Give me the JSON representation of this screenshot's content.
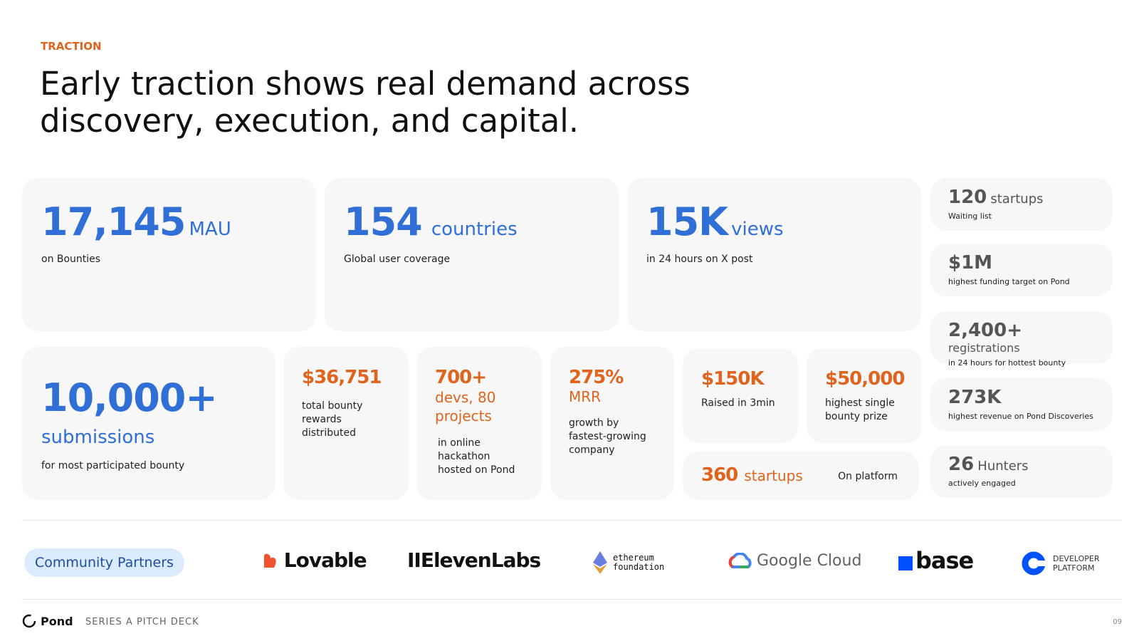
{
  "header": {
    "eyebrow": "TRACTION",
    "title_lines": [
      "Early traction shows real demand across",
      "discovery, execution, and capital."
    ]
  },
  "cards": [
    {
      "value": "17,145",
      "unit": "MAU",
      "caption": "on Bounties"
    },
    {
      "value": "154",
      "unit": "countries",
      "caption": "Global user coverage"
    },
    {
      "value": "15K",
      "unit": "views",
      "caption": "in 24 hours on X post"
    },
    {
      "value": "10,000+",
      "unit": "submissions",
      "caption": "for most participated bounty"
    },
    {
      "value": "$36,751",
      "caption": "total bounty rewards distributed"
    },
    {
      "value": "700+",
      "unit": "devs, 80 projects",
      "caption": "in online hackathon hosted on Pond"
    },
    {
      "value": "275%",
      "unit": "MRR",
      "caption": "growth by fastest-growing company"
    },
    {
      "value": "$150K",
      "caption": "Raised in 3min"
    },
    {
      "value": "$50,000",
      "caption": "highest single bounty prize"
    },
    {
      "value": "360",
      "unit": "startups",
      "caption": "On platform"
    }
  ],
  "side_stats": [
    {
      "value": "120",
      "unit": "startups",
      "caption": "Waiting list"
    },
    {
      "value": "$1M",
      "caption": "highest funding target on Pond"
    },
    {
      "value": "2,400+",
      "unit": "registrations",
      "caption": "in 24 hours for hottest bounty"
    },
    {
      "value": "273K",
      "caption": "highest revenue on Pond Discoveries"
    },
    {
      "value": "26",
      "unit": "Hunters",
      "caption": "actively engaged"
    }
  ],
  "partners": {
    "label": "Community Partners",
    "logos": [
      "Lovable",
      "IIElevenLabs",
      [
        "ethereum",
        "foundation"
      ],
      "Google Cloud",
      "base",
      [
        "DEVELOPER",
        "PLATFORM"
      ]
    ]
  },
  "footer": {
    "brand": "Pond",
    "subtitle": "SERIES A PITCH DECK",
    "page": "09"
  }
}
